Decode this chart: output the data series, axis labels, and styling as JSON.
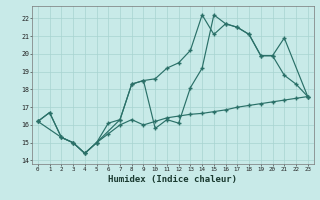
{
  "xlabel": "Humidex (Indice chaleur)",
  "bg_color": "#c8eae8",
  "line_color": "#2a7068",
  "grid_color": "#a8d4d0",
  "xlim": [
    -0.5,
    23.5
  ],
  "ylim": [
    13.8,
    22.7
  ],
  "yticks": [
    14,
    15,
    16,
    17,
    18,
    19,
    20,
    21,
    22
  ],
  "xticks": [
    0,
    1,
    2,
    3,
    4,
    5,
    6,
    7,
    8,
    9,
    10,
    11,
    12,
    13,
    14,
    15,
    16,
    17,
    18,
    19,
    20,
    21,
    22,
    23
  ],
  "line1_x": [
    0,
    1,
    2,
    3,
    4,
    5,
    6,
    7,
    8,
    9,
    10,
    11,
    12,
    13,
    14,
    15,
    16,
    17,
    18,
    19,
    20,
    21,
    22,
    23
  ],
  "line1_y": [
    16.2,
    16.7,
    15.3,
    15.0,
    14.4,
    15.0,
    15.5,
    16.0,
    16.3,
    16.0,
    16.2,
    16.4,
    16.5,
    16.6,
    16.65,
    16.75,
    16.85,
    17.0,
    17.1,
    17.2,
    17.3,
    17.4,
    17.5,
    17.6
  ],
  "line2_x": [
    0,
    1,
    2,
    3,
    4,
    5,
    6,
    7,
    8,
    9,
    10,
    11,
    12,
    13,
    14,
    15,
    16,
    17,
    18,
    19,
    20,
    21,
    22,
    23
  ],
  "line2_y": [
    16.2,
    16.7,
    15.3,
    15.0,
    14.4,
    15.0,
    16.1,
    16.3,
    18.3,
    18.5,
    18.6,
    19.2,
    19.5,
    20.2,
    22.2,
    21.1,
    21.7,
    21.5,
    21.1,
    19.9,
    19.9,
    18.8,
    18.3,
    17.6
  ],
  "line3_x": [
    0,
    2,
    3,
    4,
    5,
    7,
    8,
    9,
    10,
    11,
    12,
    13,
    14,
    15,
    16,
    17,
    18,
    19,
    20,
    21,
    23
  ],
  "line3_y": [
    16.2,
    15.3,
    15.0,
    14.4,
    15.0,
    16.3,
    18.3,
    18.5,
    15.8,
    16.3,
    16.1,
    18.1,
    19.2,
    22.2,
    21.7,
    21.5,
    21.1,
    19.9,
    19.9,
    20.9,
    17.6
  ]
}
